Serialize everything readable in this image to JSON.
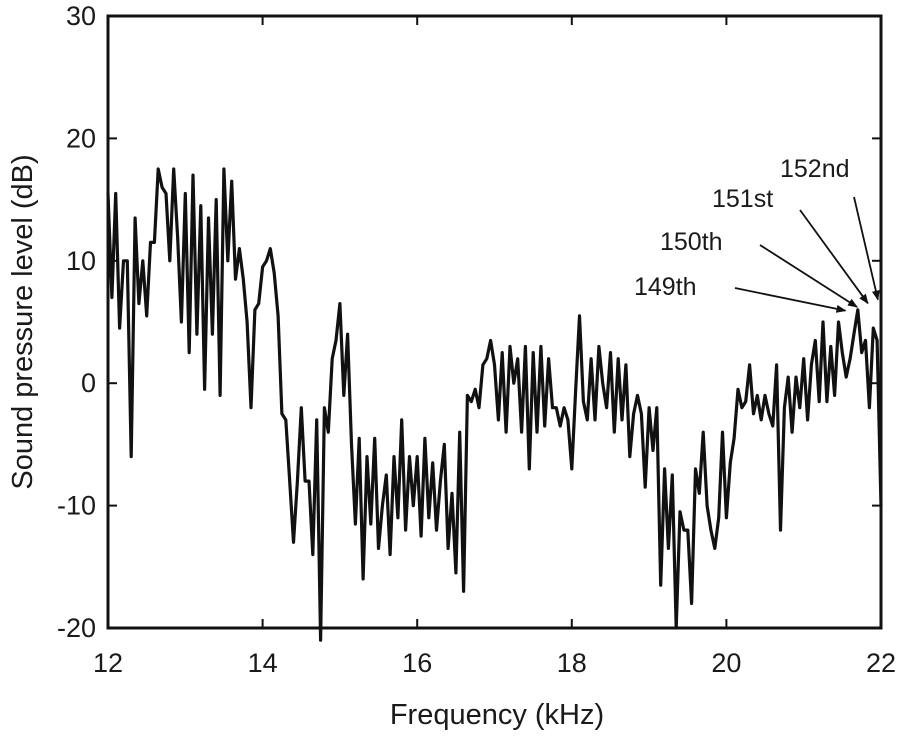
{
  "chart_data": {
    "type": "line",
    "title": "",
    "xlabel": "Frequency (kHz)",
    "ylabel": "Sound pressure level (dB)",
    "xlim": [
      12,
      22
    ],
    "ylim": [
      -20,
      30
    ],
    "xticks": [
      12,
      14,
      16,
      18,
      20,
      22
    ],
    "yticks": [
      -20,
      -10,
      0,
      10,
      20,
      30
    ],
    "grid": false,
    "legend": "none",
    "colors": {
      "line": "#111111",
      "axis": "#111111",
      "text": "#1a1a1a",
      "background": "#ffffff"
    },
    "series": [
      {
        "x": [
          12.0,
          12.05,
          12.1,
          12.15,
          12.2,
          12.25,
          12.3,
          12.35,
          12.4,
          12.45,
          12.5,
          12.55,
          12.6,
          12.65,
          12.7,
          12.75,
          12.8,
          12.85,
          12.9,
          12.95,
          13.0,
          13.05,
          13.1,
          13.15,
          13.2,
          13.25,
          13.3,
          13.35,
          13.4,
          13.45,
          13.5,
          13.55,
          13.6,
          13.65,
          13.7,
          13.75,
          13.8,
          13.85,
          13.9,
          13.95,
          14.0,
          14.05,
          14.1,
          14.15,
          14.2,
          14.25,
          14.3,
          14.35,
          14.4,
          14.45,
          14.5,
          14.55,
          14.6,
          14.65,
          14.7,
          14.75,
          14.8,
          14.85,
          14.9,
          14.95,
          15.0,
          15.05,
          15.1,
          15.15,
          15.2,
          15.25,
          15.3,
          15.35,
          15.4,
          15.45,
          15.5,
          15.55,
          15.6,
          15.65,
          15.7,
          15.75,
          15.8,
          15.85,
          15.9,
          15.95,
          16.0,
          16.05,
          16.1,
          16.15,
          16.2,
          16.25,
          16.3,
          16.35,
          16.4,
          16.45,
          16.5,
          16.55,
          16.6,
          16.65,
          16.7,
          16.75,
          16.8,
          16.85,
          16.9,
          16.95,
          17.0,
          17.05,
          17.1,
          17.15,
          17.2,
          17.25,
          17.3,
          17.35,
          17.4,
          17.45,
          17.5,
          17.55,
          17.6,
          17.65,
          17.7,
          17.75,
          17.8,
          17.85,
          17.9,
          17.95,
          18.0,
          18.05,
          18.1,
          18.15,
          18.2,
          18.25,
          18.3,
          18.35,
          18.4,
          18.45,
          18.5,
          18.55,
          18.6,
          18.65,
          18.7,
          18.75,
          18.8,
          18.85,
          18.9,
          18.95,
          19.0,
          19.05,
          19.1,
          19.15,
          19.2,
          19.25,
          19.3,
          19.35,
          19.4,
          19.45,
          19.5,
          19.55,
          19.6,
          19.65,
          19.7,
          19.75,
          19.8,
          19.85,
          19.9,
          19.95,
          20.0,
          20.05,
          20.1,
          20.15,
          20.2,
          20.25,
          20.3,
          20.35,
          20.4,
          20.45,
          20.5,
          20.55,
          20.6,
          20.65,
          20.7,
          20.75,
          20.8,
          20.85,
          20.9,
          20.95,
          21.0,
          21.05,
          21.1,
          21.15,
          21.2,
          21.25,
          21.3,
          21.35,
          21.4,
          21.45,
          21.5,
          21.55,
          21.6,
          21.65,
          21.7,
          21.75,
          21.8,
          21.85,
          21.9,
          21.95,
          22.0
        ],
        "y": [
          15.5,
          7,
          15.5,
          4.5,
          10,
          10,
          -6,
          13.5,
          6.5,
          10,
          5.5,
          11.5,
          11.5,
          17.5,
          16,
          15.5,
          10,
          17.5,
          12,
          5,
          15.5,
          2.5,
          17,
          4,
          14.5,
          -0.5,
          13.5,
          4,
          15,
          -1,
          17.5,
          10,
          16.5,
          8.5,
          11,
          8.5,
          5,
          -2,
          6,
          6.5,
          9.5,
          10,
          11,
          9,
          5.5,
          -2.5,
          -3,
          -8,
          -13,
          -8,
          -2,
          -8,
          -8,
          -14,
          -3,
          -21,
          -2,
          -4,
          2,
          3.5,
          6.5,
          -1,
          4,
          -5,
          -11.5,
          -4.5,
          -16,
          -6,
          -11.5,
          -4.5,
          -13.5,
          -10,
          -7.5,
          -14,
          -6,
          -11,
          -3,
          -12,
          -6,
          -10,
          -6,
          -12.5,
          -4.5,
          -11,
          -6.5,
          -12,
          -8,
          -5,
          -13.5,
          -9,
          -15.5,
          -4,
          -17,
          -1,
          -1.5,
          -0.5,
          -2,
          1.5,
          2,
          3.5,
          1.5,
          -3,
          2.5,
          -4,
          3,
          0,
          2,
          -4,
          3,
          -7,
          2.5,
          -4,
          3,
          -3.5,
          2,
          -2,
          -2,
          -3.5,
          -2,
          -3,
          -7,
          -0.5,
          5.5,
          -1.5,
          -3,
          2,
          -3,
          3,
          0,
          -2,
          2.5,
          -4,
          2,
          -3,
          1.5,
          -6,
          -2.5,
          -1,
          -2.5,
          -8.5,
          -2,
          -5.5,
          -2,
          -16.5,
          -7,
          -13.5,
          -7.5,
          -20,
          -10.5,
          -12,
          -12,
          -18,
          -7,
          -9,
          -4,
          -10,
          -12,
          -13.5,
          -11,
          -4,
          -11,
          -6.5,
          -4.5,
          -0.5,
          -2,
          -1.5,
          1.5,
          -2.5,
          -1,
          -3,
          -1,
          -2.5,
          -3.5,
          1.5,
          -12,
          -2,
          0.5,
          -4,
          0.5,
          -2,
          2,
          -3,
          1.5,
          3.5,
          -1.5,
          5,
          -1.5,
          3,
          -1,
          5,
          2.5,
          0.5,
          2,
          4,
          6,
          2.5,
          3.5,
          -2,
          4.5,
          3.5,
          -10
        ]
      }
    ],
    "annotations": [
      {
        "label": "149th",
        "x": 21.54,
        "y": 5.6
      },
      {
        "label": "150th",
        "x": 21.69,
        "y": 5.9
      },
      {
        "label": "151st",
        "x": 21.83,
        "y": 6.2
      },
      {
        "label": "152nd",
        "x": 21.96,
        "y": 6.5
      }
    ]
  }
}
